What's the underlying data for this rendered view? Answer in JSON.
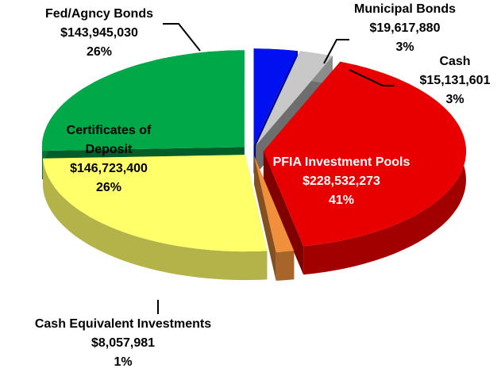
{
  "chart_data": {
    "type": "pie",
    "categories": [
      "Municipal Bonds",
      "Cash",
      "PFIA Investment Pools",
      "Cash Equivalent Investments",
      "Certificates of Deposit",
      "Fed/Agncy Bonds"
    ],
    "values": [
      19617880,
      15131601,
      228532273,
      8057981,
      146723400,
      143945030
    ],
    "value_labels": [
      "$19,617,880",
      "$15,131,601",
      "$228,532,273",
      "$8,057,981",
      "$146,723,400",
      "$143,945,030"
    ],
    "percent_labels": [
      "3%",
      "3%",
      "41%",
      "1%",
      "26%",
      "26%"
    ],
    "colors": [
      "#0010f0",
      "#c8c8c8",
      "#e80000",
      "#f0903c",
      "#ffff6a",
      "#00a848"
    ]
  }
}
